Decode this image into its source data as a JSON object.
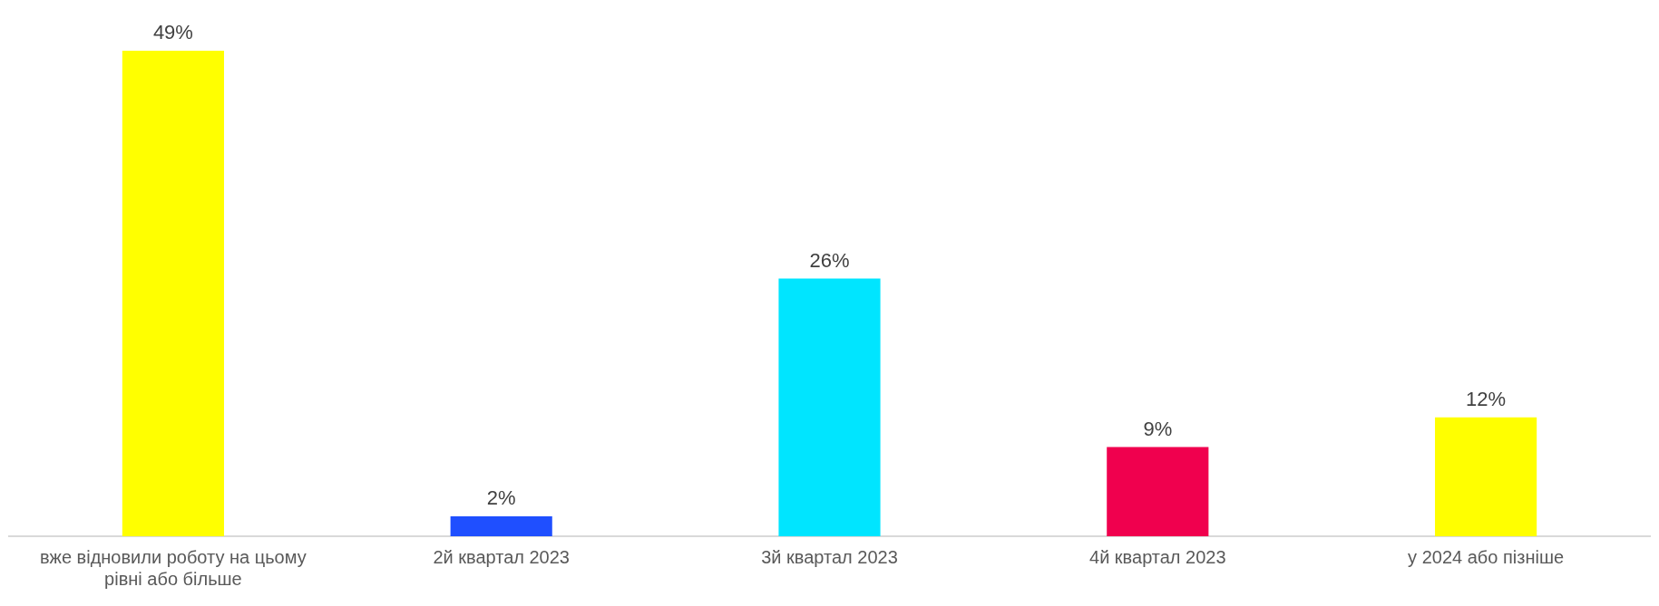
{
  "chart_data": {
    "type": "bar",
    "categories": [
      "вже відновили роботу на цьому рівні або більше",
      "2й квартал 2023",
      "3й квартал 2023",
      "4й квартал 2023",
      "у 2024 або пізніше"
    ],
    "values": [
      49,
      2,
      26,
      9,
      12
    ],
    "colors": [
      "#ffff00",
      "#1f4fff",
      "#00e5ff",
      "#f0004e",
      "#ffff00"
    ],
    "value_labels": [
      "49%",
      "2%",
      "26%",
      "9%",
      "12%"
    ],
    "grid": false,
    "legend": false,
    "tick_labels": "x"
  }
}
